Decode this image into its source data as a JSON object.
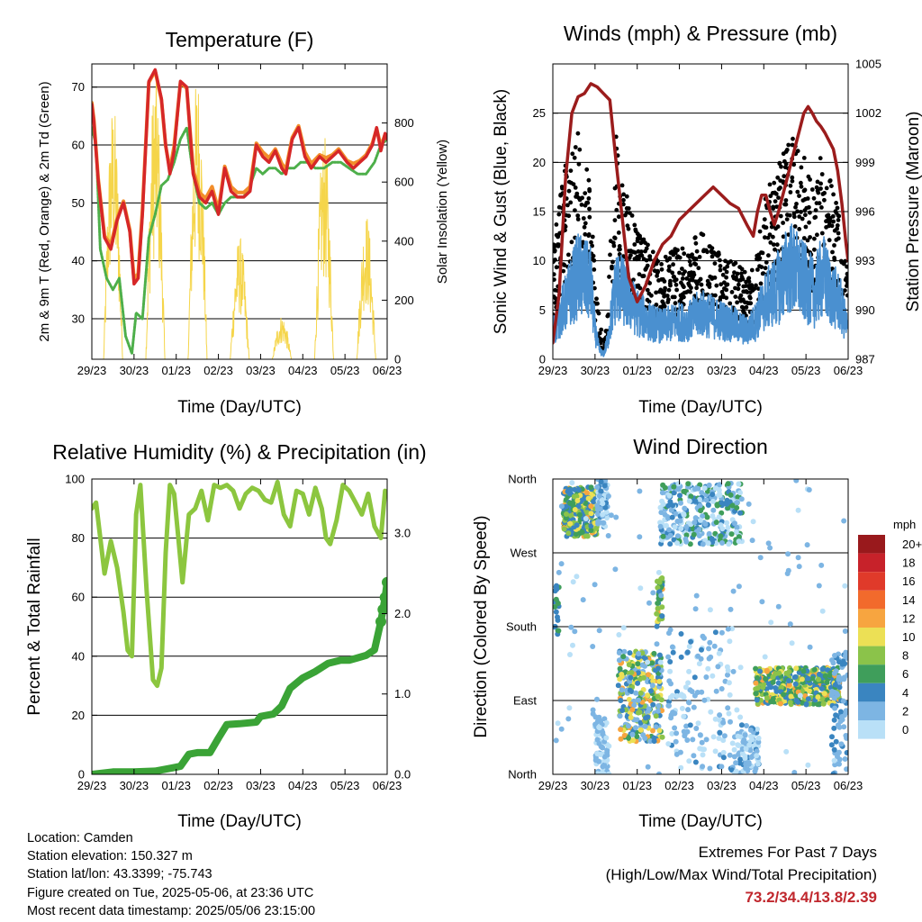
{
  "colors": {
    "temp_2m": "#d62728",
    "temp_9m": "#f28e2b",
    "dewpoint": "#4daf4a",
    "solar": "#f5d54a",
    "wind": "#4a90d0",
    "gust": "#000000",
    "pressure": "#9b1c1c",
    "humidity": "#8cc63f",
    "rainfall": "#3aa336"
  },
  "x_ticks": [
    "29/23",
    "30/23",
    "01/23",
    "02/23",
    "03/23",
    "04/23",
    "05/23",
    "06/23"
  ],
  "x_axis_title": "Time (Day/UTC)",
  "chart_data": [
    {
      "id": "temperature",
      "type": "line",
      "title": "Temperature (F)",
      "xlabel": "Time (Day/UTC)",
      "ylabel": "2m & 9m T (Red, Orange) & 2m Td (Green)",
      "y2label": "Solar Insolation (Yellow)",
      "ylim": [
        23,
        74
      ],
      "yticks": [
        30,
        40,
        50,
        60,
        70
      ],
      "y2lim": [
        0,
        1000
      ],
      "y2ticks": [
        0,
        200,
        400,
        600,
        800
      ],
      "xlim": [
        0,
        7.0
      ],
      "series": [
        {
          "key": "t2m",
          "axis": "y",
          "x": [
            0,
            0.05,
            0.15,
            0.3,
            0.45,
            0.6,
            0.75,
            0.9,
            1.0,
            1.1,
            1.2,
            1.35,
            1.5,
            1.65,
            1.75,
            1.85,
            1.95,
            2.1,
            2.25,
            2.4,
            2.55,
            2.7,
            2.85,
            3.0,
            3.15,
            3.3,
            3.45,
            3.6,
            3.75,
            3.9,
            4.05,
            4.2,
            4.35,
            4.5,
            4.6,
            4.75,
            4.9,
            5.05,
            5.2,
            5.4,
            5.55,
            5.7,
            5.85,
            5.95,
            6.05,
            6.2,
            6.35,
            6.5,
            6.65,
            6.75,
            6.85,
            6.95,
            7.0
          ],
          "y": [
            67,
            64,
            54,
            44,
            42,
            47,
            50,
            45,
            36,
            37,
            48,
            71,
            73,
            68,
            60,
            55,
            59,
            71,
            70,
            55,
            51,
            50,
            52,
            48,
            56,
            52,
            51,
            51,
            52,
            60,
            58,
            57,
            59,
            56,
            55,
            61,
            63,
            58,
            56,
            58,
            57,
            58,
            59,
            58,
            57,
            56,
            57,
            58,
            60,
            63,
            59,
            62,
            61
          ]
        },
        {
          "key": "t9m",
          "axis": "y",
          "x": [
            0,
            0.05,
            0.15,
            0.3,
            0.45,
            0.6,
            0.75,
            0.9,
            1.0,
            1.1,
            1.2,
            1.35,
            1.5,
            1.65,
            1.75,
            1.85,
            1.95,
            2.1,
            2.25,
            2.4,
            2.55,
            2.7,
            2.85,
            3.0,
            3.15,
            3.3,
            3.45,
            3.6,
            3.75,
            3.9,
            4.05,
            4.2,
            4.35,
            4.5,
            4.6,
            4.75,
            4.9,
            5.05,
            5.2,
            5.4,
            5.55,
            5.7,
            5.85,
            5.95,
            6.05,
            6.2,
            6.35,
            6.5,
            6.65,
            6.75,
            6.85,
            6.95,
            7.0
          ],
          "y": [
            66.5,
            63.5,
            53.5,
            43.5,
            42,
            46.5,
            49.5,
            44.5,
            36,
            37,
            48,
            70,
            72,
            67,
            59,
            55,
            59,
            70,
            69,
            55,
            51,
            50,
            52,
            48,
            55.5,
            52,
            51,
            51,
            52,
            59.5,
            58,
            57,
            58.5,
            56,
            55,
            60.5,
            62.5,
            58,
            56,
            57.5,
            57,
            57.5,
            58.5,
            57.5,
            56.5,
            56,
            56.5,
            57.5,
            59.5,
            62,
            59,
            61,
            60.5
          ]
        },
        {
          "key": "td",
          "axis": "y",
          "x": [
            0,
            0.1,
            0.2,
            0.35,
            0.5,
            0.65,
            0.8,
            0.95,
            1.05,
            1.2,
            1.35,
            1.5,
            1.65,
            1.8,
            1.95,
            2.1,
            2.25,
            2.4,
            2.55,
            2.7,
            2.85,
            3.0,
            3.15,
            3.3,
            3.45,
            3.6,
            3.75,
            3.9,
            4.05,
            4.2,
            4.35,
            4.5,
            4.65,
            4.8,
            4.95,
            5.1,
            5.3,
            5.5,
            5.7,
            5.9,
            6.1,
            6.3,
            6.5,
            6.7,
            6.85,
            7.0
          ],
          "y": [
            63,
            60,
            42,
            37,
            35,
            37,
            27,
            24,
            31,
            30,
            44,
            48,
            53,
            54,
            57,
            61,
            63,
            55,
            50,
            49,
            50,
            48,
            50,
            51,
            51,
            51,
            53,
            56,
            55,
            56,
            56,
            55,
            56,
            56,
            57,
            57,
            56,
            56,
            57,
            57,
            56,
            55,
            55,
            57,
            60,
            61
          ]
        },
        {
          "key": "solar",
          "axis": "y2",
          "days": [
            0,
            1,
            2,
            3,
            4,
            5,
            6
          ],
          "peaks": [
            880,
            980,
            980,
            420,
            150,
            760,
            500
          ]
        }
      ]
    },
    {
      "id": "winds",
      "type": "scatter",
      "title": "Winds (mph) & Pressure (mb)",
      "xlabel": "Time (Day/UTC)",
      "ylabel": "Sonic Wind & Gust (Blue, Black)",
      "y2label": "Station Pressure (Maroon)",
      "ylim": [
        0,
        30
      ],
      "yticks": [
        0,
        5,
        10,
        15,
        20,
        25
      ],
      "y2lim": [
        987,
        1005
      ],
      "y2ticks": [
        987,
        990,
        993,
        996,
        999,
        1002,
        1005
      ],
      "xlim": [
        0,
        7.0
      ],
      "series": [
        {
          "key": "pressure",
          "axis": "y2",
          "x": [
            0,
            0.15,
            0.3,
            0.45,
            0.6,
            0.75,
            0.9,
            1.05,
            1.2,
            1.35,
            1.5,
            1.65,
            1.8,
            2.0,
            2.2,
            2.4,
            2.6,
            2.8,
            3.0,
            3.2,
            3.4,
            3.6,
            3.8,
            4.0,
            4.2,
            4.4,
            4.6,
            4.75,
            4.85,
            4.95,
            5.05,
            5.15,
            5.25,
            5.35,
            5.45,
            5.55,
            5.65,
            5.75,
            5.85,
            5.95,
            6.05,
            6.15,
            6.25,
            6.35,
            6.45,
            6.55,
            6.65,
            6.75,
            6.85,
            6.95,
            7.0
          ],
          "y": [
            988,
            991,
            998,
            1002,
            1003,
            1003.2,
            1003.8,
            1003.6,
            1003.2,
            1002.8,
            999,
            995.5,
            992,
            990.5,
            991.5,
            993,
            994,
            994.5,
            995.5,
            996,
            996.5,
            997,
            997.5,
            997,
            996.5,
            996.2,
            995.2,
            994.5,
            996,
            997,
            997,
            996,
            995.2,
            996,
            997,
            998,
            999,
            1000,
            1001,
            1002,
            1002.4,
            1002,
            1001.5,
            1001.2,
            1000.8,
            1000.3,
            999.8,
            998.5,
            996.5,
            994,
            993
          ]
        },
        {
          "key": "wind_base",
          "axis": "y",
          "x": [
            0,
            0.3,
            0.6,
            0.9,
            1.0,
            1.1,
            1.2,
            1.3,
            1.5,
            1.7,
            2.0,
            2.3,
            2.6,
            2.9,
            3.2,
            3.5,
            3.8,
            4.1,
            4.4,
            4.6,
            4.8,
            5.0,
            5.2,
            5.4,
            5.6,
            5.8,
            6.0,
            6.2,
            6.4,
            6.6,
            6.8,
            7.0
          ],
          "y": [
            3,
            6,
            9,
            8,
            3,
            1,
            0.5,
            2,
            8,
            7,
            5,
            4,
            3.5,
            4,
            4,
            5,
            4.5,
            4,
            3.5,
            3,
            4,
            6,
            7,
            8,
            10,
            9,
            8,
            7,
            9,
            7,
            6,
            3
          ]
        },
        {
          "key": "gust_base",
          "axis": "y",
          "x": [
            0,
            0.3,
            0.6,
            0.9,
            1.0,
            1.1,
            1.2,
            1.3,
            1.5,
            1.7,
            2.0,
            2.3,
            2.6,
            2.9,
            3.2,
            3.5,
            3.8,
            4.1,
            4.4,
            4.6,
            4.8,
            5.0,
            5.2,
            5.4,
            5.6,
            5.8,
            6.0,
            6.2,
            6.4,
            6.6,
            6.8,
            7.0
          ],
          "y": [
            8,
            14,
            16,
            13,
            6,
            3,
            1,
            4,
            16,
            12,
            9,
            8,
            7,
            8,
            8,
            9,
            8,
            7,
            7,
            6,
            7,
            11,
            13,
            14,
            16,
            15,
            14,
            12,
            15,
            13,
            10,
            6
          ]
        }
      ]
    },
    {
      "id": "humidity",
      "type": "line",
      "title": "Relative Humidity (%) & Precipitation (in)",
      "xlabel": "Time (Day/UTC)",
      "ylabel": "Percent & Total Rainfall",
      "ylim": [
        0,
        100
      ],
      "yticks": [
        0,
        20,
        40,
        60,
        80,
        100
      ],
      "y2lim": [
        0,
        3.675
      ],
      "y2ticks": [
        "0.0",
        "1.0",
        "2.0",
        "3.0"
      ],
      "xlim": [
        0,
        7.0
      ],
      "series": [
        {
          "key": "rh",
          "axis": "y",
          "x": [
            0,
            0.1,
            0.2,
            0.3,
            0.45,
            0.6,
            0.75,
            0.85,
            0.95,
            1.05,
            1.15,
            1.3,
            1.45,
            1.55,
            1.65,
            1.75,
            1.85,
            1.95,
            2.05,
            2.15,
            2.3,
            2.45,
            2.6,
            2.75,
            2.9,
            3.05,
            3.2,
            3.35,
            3.5,
            3.65,
            3.8,
            3.95,
            4.1,
            4.25,
            4.4,
            4.55,
            4.7,
            4.85,
            5.0,
            5.15,
            5.3,
            5.45,
            5.55,
            5.65,
            5.8,
            5.95,
            6.1,
            6.25,
            6.4,
            6.55,
            6.7,
            6.85,
            6.95,
            7.0
          ],
          "y": [
            90,
            92,
            80,
            68,
            79,
            70,
            55,
            42,
            40,
            88,
            98,
            62,
            32,
            30,
            36,
            75,
            98,
            95,
            80,
            65,
            88,
            90,
            96,
            86,
            98,
            97,
            98,
            96,
            90,
            95,
            97,
            96,
            93,
            92,
            99,
            88,
            84,
            96,
            95,
            88,
            97,
            90,
            80,
            78,
            86,
            98,
            96,
            92,
            88,
            95,
            84,
            80,
            96,
            95
          ]
        },
        {
          "key": "rain",
          "axis": "y2",
          "x": [
            0,
            0.5,
            1.0,
            1.5,
            1.9,
            2.1,
            2.3,
            2.5,
            2.8,
            3.0,
            3.2,
            3.5,
            3.9,
            4.0,
            4.3,
            4.5,
            4.7,
            5.0,
            5.3,
            5.6,
            5.9,
            6.1,
            6.3,
            6.5,
            6.7,
            6.85,
            6.95,
            7.0
          ],
          "y": [
            0.0,
            0.03,
            0.03,
            0.04,
            0.08,
            0.1,
            0.25,
            0.27,
            0.27,
            0.45,
            0.62,
            0.63,
            0.65,
            0.72,
            0.75,
            0.85,
            1.07,
            1.2,
            1.28,
            1.38,
            1.42,
            1.42,
            1.45,
            1.48,
            1.55,
            1.9,
            2.2,
            2.39
          ]
        }
      ]
    },
    {
      "id": "direction",
      "type": "scatter",
      "title": "Wind Direction",
      "xlabel": "Time (Day/UTC)",
      "ylabel": "Direction (Colored By Speed)",
      "ylim": [
        0,
        360
      ],
      "yticks": [
        "North",
        "East",
        "South",
        "West",
        "North"
      ],
      "xlim": [
        0,
        7.0
      ],
      "legend": {
        "title": "mph",
        "labels": [
          "20+",
          "18",
          "16",
          "14",
          "12",
          "10",
          "8",
          "6",
          "4",
          "2",
          "0"
        ],
        "colors": [
          "#99191c",
          "#c7222a",
          "#e03a2a",
          "#f26a2c",
          "#f7a540",
          "#ece055",
          "#8bc34a",
          "#3f9e5b",
          "#3a85c0",
          "#7db5e3",
          "#b9e0f7"
        ]
      },
      "clusters": [
        {
          "x": [
            0.25,
            1.05
          ],
          "y": [
            290,
            350
          ],
          "speed": [
            3,
            12
          ],
          "n": 260
        },
        {
          "x": [
            1.05,
            1.3
          ],
          "y": [
            300,
            360
          ],
          "speed": [
            0,
            4
          ],
          "n": 60
        },
        {
          "x": [
            1.55,
            2.6
          ],
          "y": [
            40,
            150
          ],
          "speed": [
            2,
            12
          ],
          "n": 300
        },
        {
          "x": [
            1.0,
            1.3
          ],
          "y": [
            0,
            70
          ],
          "speed": [
            0,
            3
          ],
          "n": 70
        },
        {
          "x": [
            2.45,
            2.6
          ],
          "y": [
            180,
            240
          ],
          "speed": [
            3,
            12
          ],
          "n": 40
        },
        {
          "x": [
            2.55,
            4.5
          ],
          "y": [
            280,
            355
          ],
          "speed": [
            0,
            7
          ],
          "n": 300
        },
        {
          "x": [
            2.7,
            4.3
          ],
          "y": [
            0,
            180
          ],
          "speed": [
            0,
            4
          ],
          "n": 140
        },
        {
          "x": [
            4.3,
            4.9
          ],
          "y": [
            0,
            60
          ],
          "speed": [
            0,
            4
          ],
          "n": 80
        },
        {
          "x": [
            4.8,
            6.8
          ],
          "y": [
            85,
            130
          ],
          "speed": [
            3,
            12
          ],
          "n": 420
        },
        {
          "x": [
            6.6,
            7.0
          ],
          "y": [
            0,
            150
          ],
          "speed": [
            1,
            5
          ],
          "n": 80
        },
        {
          "x": [
            0.0,
            0.15
          ],
          "y": [
            170,
            230
          ],
          "speed": [
            3,
            6
          ],
          "n": 20
        },
        {
          "x": [
            0.05,
            7.0
          ],
          "y": [
            0,
            360
          ],
          "speed": [
            0,
            3
          ],
          "n": 120
        }
      ]
    }
  ],
  "info": {
    "location": "Location: Camden",
    "elevation": "Station elevation: 150.327 m",
    "latlon": "Station lat/lon: 43.3399; -75.743",
    "created": "Figure created on Tue, 2025-05-06, at 23:36 UTC",
    "recent": "Most recent data timestamp: 2025/05/06 23:15:00"
  },
  "extremes": {
    "line1": "Extremes For Past 7 Days",
    "line2": "(High/Low/Max Wind/Total Precipitation)",
    "values": "73.2/34.4/13.8/2.39"
  }
}
